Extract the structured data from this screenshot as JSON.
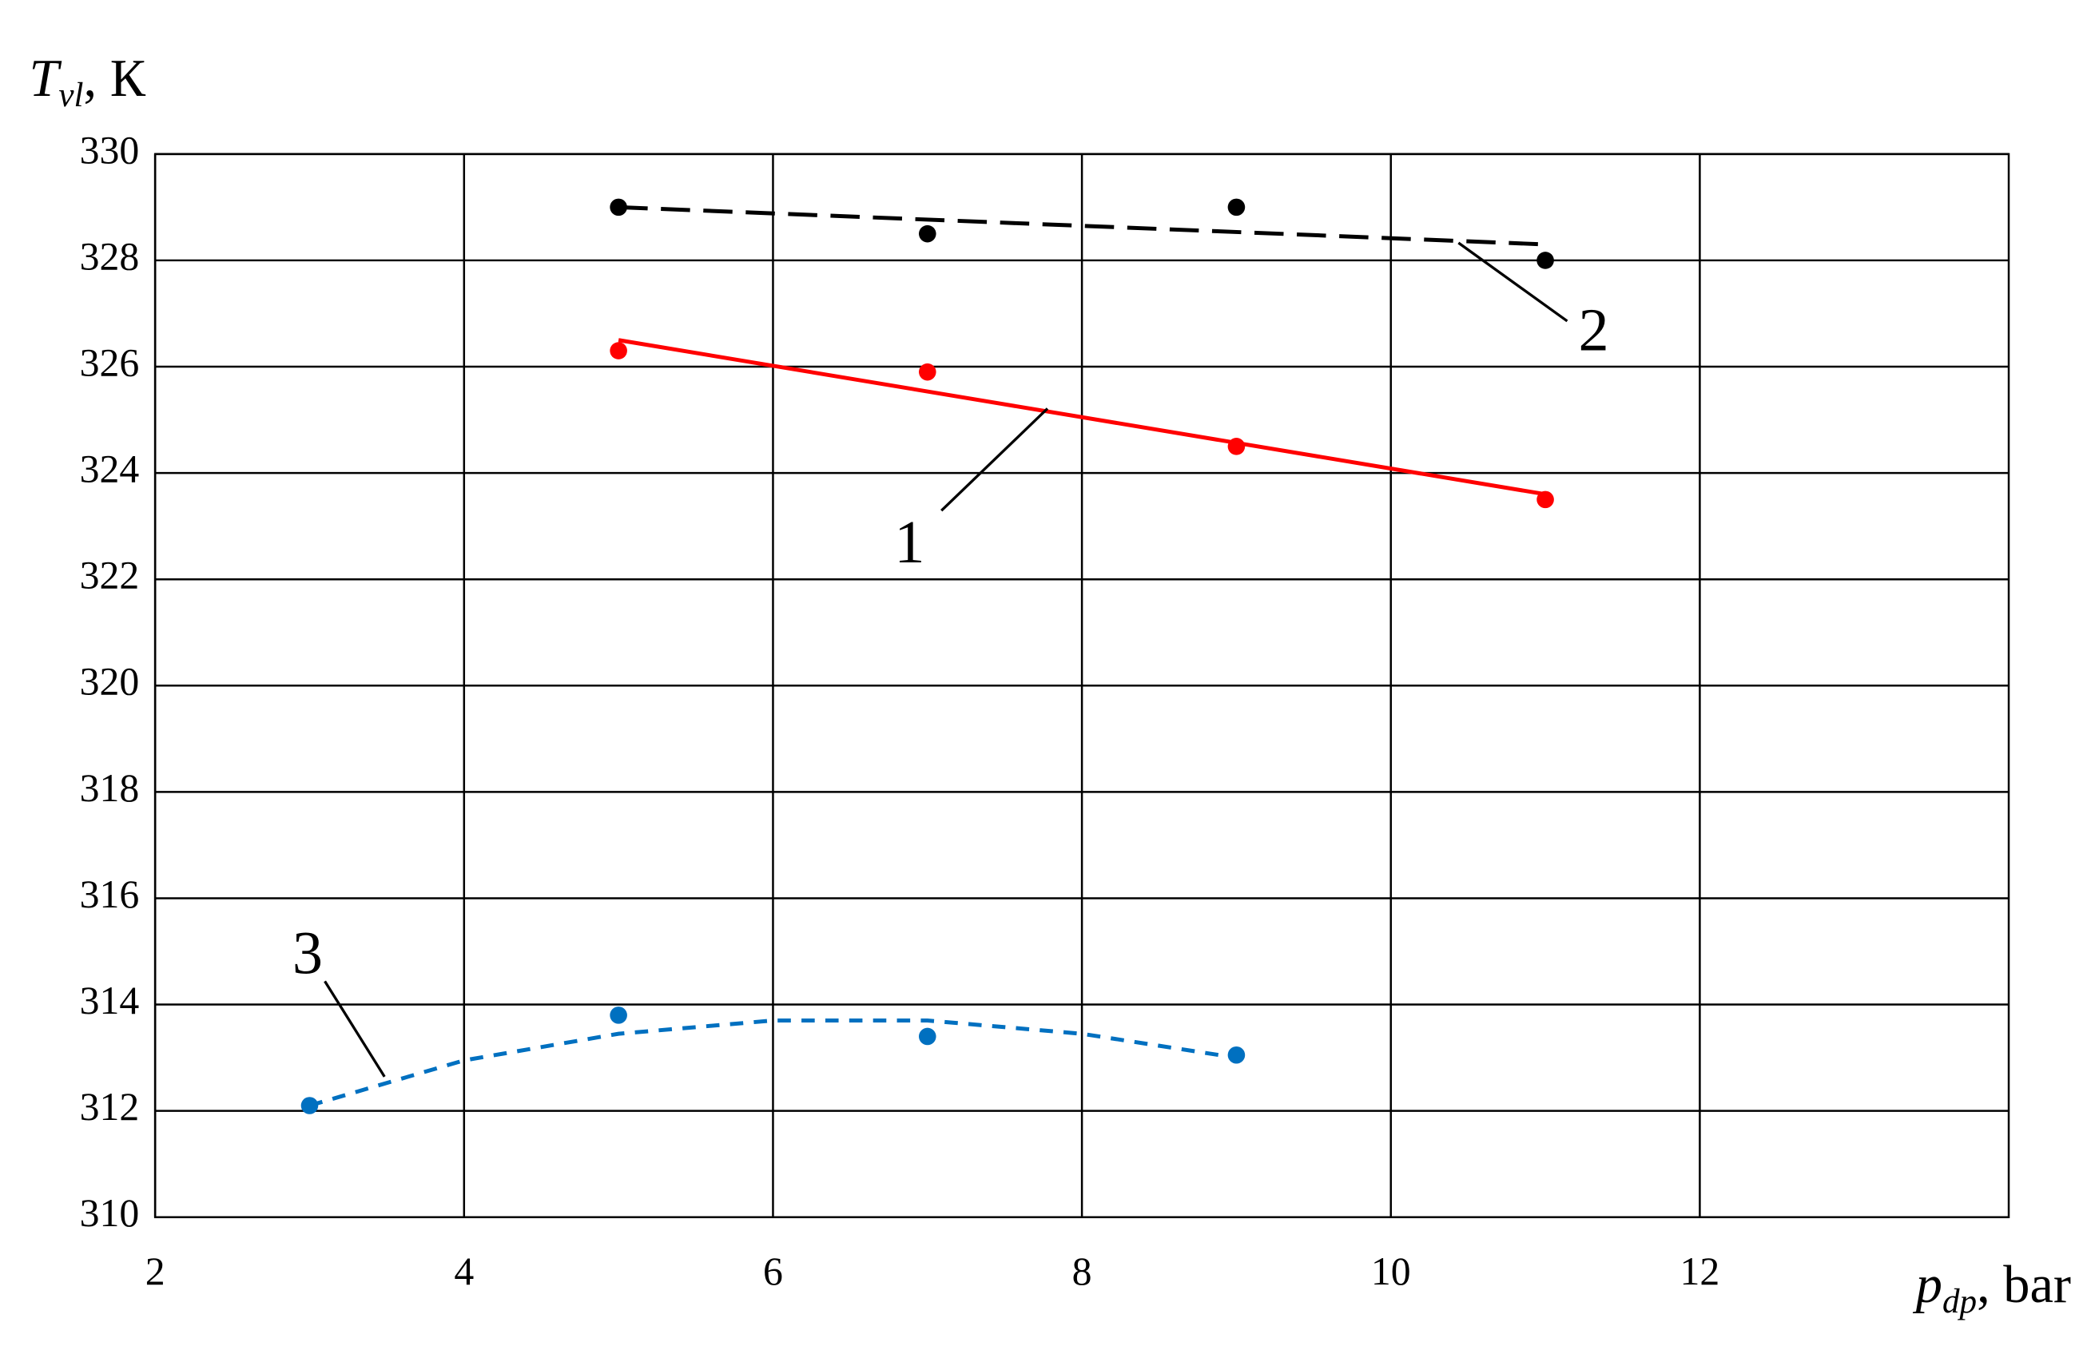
{
  "chart_data": {
    "type": "scatter",
    "y_label": {
      "symbol": "T",
      "subscript": "vl",
      "unit": ", К"
    },
    "x_label": {
      "symbol": "p",
      "subscript": "dp",
      "unit": ", bar"
    },
    "xlim": [
      2,
      14
    ],
    "xticks": [
      2,
      4,
      6,
      8,
      10,
      12
    ],
    "ylim": [
      310,
      330
    ],
    "yticks": [
      310,
      312,
      314,
      316,
      318,
      320,
      322,
      324,
      326,
      328,
      330
    ],
    "grid": true,
    "series": [
      {
        "name": "1",
        "color": "#ff0000",
        "dashed": false,
        "x": [
          5,
          7,
          9,
          11
        ],
        "values": [
          326.3,
          325.9,
          324.5,
          323.5
        ],
        "fit_x": [
          5,
          11
        ],
        "fit_values": [
          326.5,
          323.6
        ]
      },
      {
        "name": "2",
        "color": "#000000",
        "dashed": true,
        "x": [
          5,
          7,
          9,
          11
        ],
        "values": [
          329,
          328.5,
          329,
          328
        ],
        "fit_x": [
          5,
          11
        ],
        "fit_values": [
          329,
          328.3
        ]
      },
      {
        "name": "3",
        "color": "#0070c0",
        "dashed": true,
        "x": [
          3,
          5,
          7,
          9
        ],
        "values": [
          312.1,
          313.8,
          313.4,
          313.05
        ],
        "fit_x": [
          3,
          4,
          5,
          6,
          7,
          8,
          9
        ],
        "fit_values": [
          312.1,
          312.95,
          313.45,
          313.7,
          313.7,
          313.45,
          313.0
        ]
      }
    ]
  }
}
